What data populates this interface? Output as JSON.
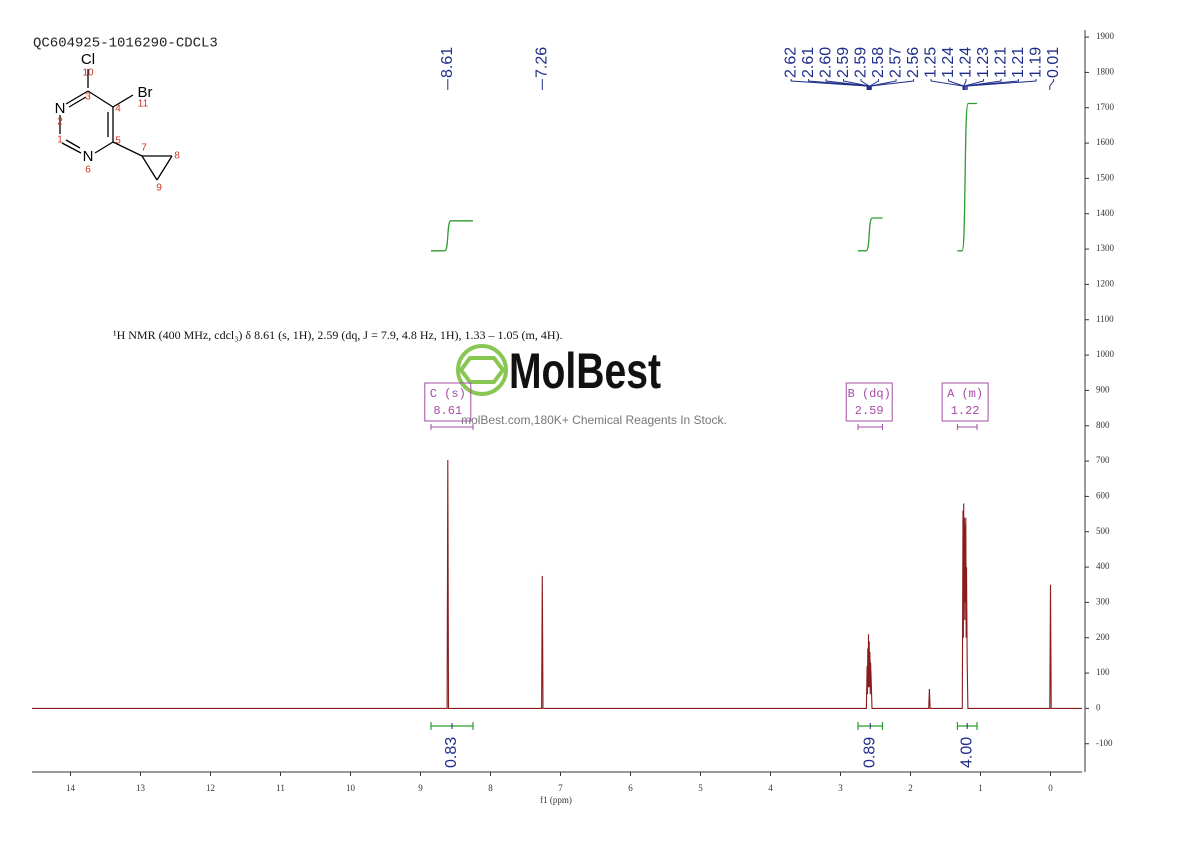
{
  "chart_data": {
    "type": "line",
    "title": "QC604925-1016290-CDCL3",
    "annotation": "¹H NMR (400 MHz, cdcl₃) δ 8.61 (s, 1H), 2.59 (dq, J = 7.9, 4.8 Hz, 1H), 1.33 – 1.05 (m, 4H).",
    "watermark": "MolBest",
    "watermark_subtitle": "molBest.com,180K+ Chemical Reagents In Stock.",
    "x_label": "f1 (ppm)",
    "xlim": [
      14.55,
      -0.45
    ],
    "xticks": [
      14,
      13,
      12,
      11,
      10,
      9,
      8,
      7,
      6,
      5,
      4,
      3,
      2,
      1,
      0
    ],
    "ylim": [
      -180,
      1920
    ],
    "yticks": [
      -100,
      0,
      100,
      200,
      300,
      400,
      500,
      600,
      700,
      800,
      900,
      1000,
      1100,
      1200,
      1300,
      1400,
      1500,
      1600,
      1700,
      1800,
      1900
    ],
    "series": [
      {
        "color": "#8b1c1c",
        "x": [
          14.55,
          8.62,
          8.61,
          8.6,
          7.27,
          7.26,
          7.25,
          2.63,
          2.62,
          2.615,
          2.61,
          2.605,
          2.6,
          2.595,
          2.59,
          2.585,
          2.58,
          2.575,
          2.57,
          2.56,
          2.55,
          1.74,
          1.73,
          1.72,
          1.26,
          1.25,
          1.245,
          1.24,
          1.235,
          1.23,
          1.225,
          1.22,
          1.215,
          1.21,
          1.205,
          1.2,
          1.19,
          1.18,
          0.01,
          0,
          -0.01,
          -0.45
        ],
        "values": [
          0,
          0,
          703,
          0,
          0,
          375,
          0,
          0,
          120,
          40,
          170,
          60,
          210,
          60,
          190,
          60,
          160,
          40,
          130,
          70,
          0,
          0,
          55,
          0,
          0,
          560,
          200,
          580,
          300,
          540,
          250,
          520,
          300,
          540,
          200,
          400,
          130,
          0,
          0,
          350,
          0,
          0
        ]
      }
    ],
    "peaks": [
      {
        "value": 8.61,
        "label": "8.61"
      },
      {
        "value": 7.26,
        "label": "7.26"
      },
      {
        "value": 2.62,
        "label": "2.62"
      },
      {
        "value": 2.61,
        "label": "2.61"
      },
      {
        "value": 2.6,
        "label": "2.60"
      },
      {
        "value": 2.59,
        "label": "2.59"
      },
      {
        "value": 2.59,
        "label": "2.59"
      },
      {
        "value": 2.58,
        "label": "2.58"
      },
      {
        "value": 2.57,
        "label": "2.57"
      },
      {
        "value": 2.56,
        "label": "2.56"
      },
      {
        "value": 1.25,
        "label": "1.25"
      },
      {
        "value": 1.24,
        "label": "1.24"
      },
      {
        "value": 1.24,
        "label": "1.24"
      },
      {
        "value": 1.23,
        "label": "1.23"
      },
      {
        "value": 1.21,
        "label": "1.21"
      },
      {
        "value": 1.21,
        "label": "1.21"
      },
      {
        "value": 1.19,
        "label": "1.19"
      },
      {
        "value": 0.01,
        "label": "0.01"
      }
    ],
    "integrals": {
      "ranges": [
        [
          8.85,
          8.25
        ],
        [
          2.75,
          2.4
        ],
        [
          1.33,
          1.05
        ]
      ],
      "values": [
        0.83,
        0.89,
        4
      ],
      "value_labels": [
        "0.83",
        "0.89",
        "4.00"
      ],
      "curve_levels": [
        [
          1295,
          1380
        ],
        [
          1295,
          1388
        ],
        [
          1295,
          1712
        ]
      ]
    },
    "multiplets": [
      {
        "name": "C (s)",
        "shift": 8.61,
        "range": [
          8.85,
          8.25
        ]
      },
      {
        "name": "B (dq)",
        "shift": 2.59,
        "range": [
          2.75,
          2.4
        ]
      },
      {
        "name": "A (m)",
        "shift": 1.22,
        "range": [
          1.33,
          1.05
        ]
      }
    ],
    "structure": {
      "atoms": [
        "Cl",
        "Br",
        "N",
        "N"
      ],
      "numbers": [
        "10",
        "3",
        "4",
        "11",
        "2",
        "1",
        "5",
        "6",
        "7",
        "8",
        "9"
      ]
    }
  }
}
